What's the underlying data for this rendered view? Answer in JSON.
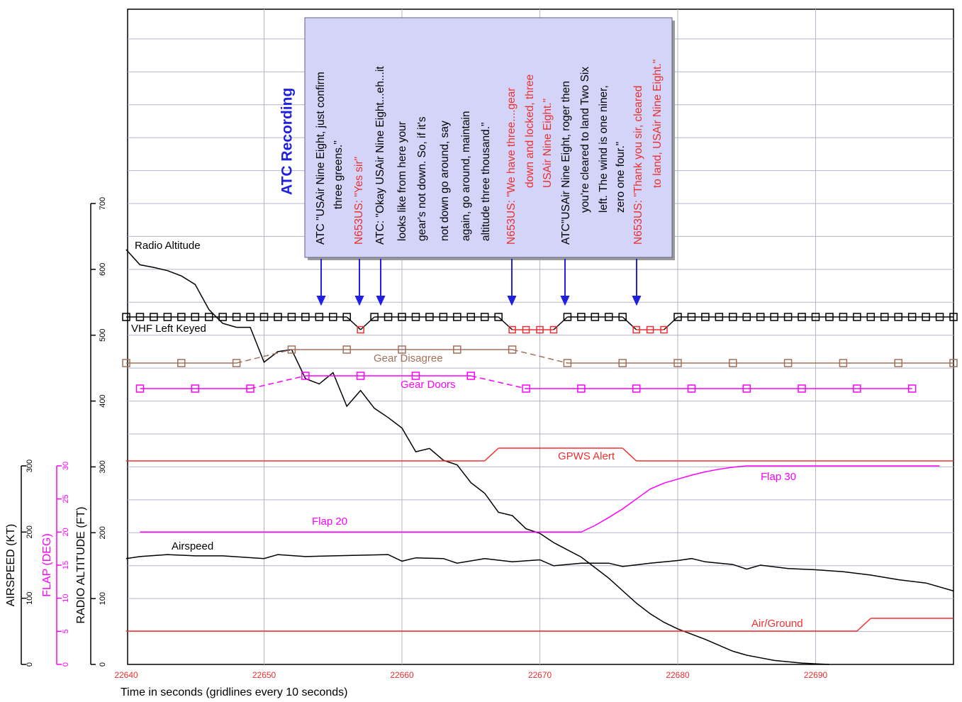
{
  "chart_data": {
    "type": "line",
    "xlabel": "Time in seconds (gridlines every 10 seconds)",
    "xlim": [
      22640,
      22700
    ],
    "xticks": [
      22640,
      22650,
      22660,
      22670,
      22680,
      22690
    ],
    "y_axes": [
      {
        "label": "RADIO ALTITUDE (FT)",
        "lim": [
          0,
          700
        ],
        "ticks": [
          0,
          100,
          200,
          300,
          400,
          500,
          600,
          700
        ],
        "color": "#000000"
      },
      {
        "label": "FLAP (DEG)",
        "lim": [
          0,
          30
        ],
        "ticks": [
          0,
          5,
          10,
          15,
          20,
          25,
          30
        ],
        "color": "#ff00ff"
      },
      {
        "label": "AIRSPEED (KT)",
        "lim": [
          0,
          300
        ],
        "ticks": [
          0,
          100,
          200,
          300
        ],
        "color": "#000000"
      }
    ],
    "ygrid": [
      50,
      100,
      150,
      200,
      250,
      300,
      350,
      400,
      450,
      500,
      550,
      600,
      650,
      700,
      750,
      800,
      850,
      900,
      950
    ],
    "grid": true,
    "series": [
      {
        "name": "Radio Altitude",
        "color": "#000000",
        "axis": 0,
        "x": [
          22640,
          22641,
          22642,
          22643,
          22644,
          22645,
          22646,
          22647,
          22648,
          22649,
          22650,
          22651,
          22652,
          22653,
          22654,
          22655,
          22656,
          22657,
          22658,
          22659,
          22660,
          22661,
          22662,
          22663,
          22664,
          22665,
          22666,
          22667,
          22668,
          22669,
          22670,
          22671,
          22672,
          22673,
          22674,
          22675,
          22676,
          22677,
          22678,
          22679,
          22680,
          22681,
          22682,
          22683,
          22684,
          22685,
          22686,
          22687,
          22688,
          22689,
          22690,
          22691
        ],
        "values": [
          630,
          607,
          603,
          598,
          590,
          577,
          539,
          518,
          512,
          512,
          459,
          475,
          478,
          434,
          426,
          443,
          392,
          416,
          389,
          375,
          359,
          323,
          328,
          310,
          303,
          276,
          260,
          231,
          226,
          206,
          199,
          185,
          174,
          163,
          147,
          131,
          112,
          93,
          77,
          64,
          54,
          46,
          38,
          29,
          20,
          14,
          10,
          6,
          4,
          2,
          1,
          0
        ]
      },
      {
        "name": "Airspeed",
        "color": "#000000",
        "axis": 2,
        "x": [
          22640,
          22641,
          22643,
          22645,
          22647,
          22650,
          22651,
          22653,
          22655,
          22657,
          22659,
          22660,
          22661,
          22663,
          22664,
          22666,
          22668,
          22670,
          22671,
          22673,
          22675,
          22676,
          22678,
          22680,
          22681,
          22682,
          22684,
          22685,
          22686,
          22688,
          22690,
          22692,
          22694,
          22696,
          22698,
          22700
        ],
        "values": [
          160,
          163,
          166,
          164,
          164,
          160,
          166,
          163,
          164,
          165,
          166,
          156,
          161,
          160,
          153,
          160,
          155,
          158,
          149,
          153,
          153,
          148,
          153,
          157,
          160,
          155,
          151,
          144,
          150,
          145,
          143,
          140,
          135,
          128,
          123,
          111
        ]
      },
      {
        "color": "#ff00ff",
        "axis": 1,
        "x": [
          22641,
          22673,
          22674,
          22675,
          22676,
          22677,
          22678,
          22679,
          22680,
          22681,
          22682,
          22683,
          22684,
          22685,
          22699
        ],
        "values": [
          20,
          20,
          21,
          22.2,
          23.5,
          25,
          26.5,
          27.4,
          28,
          28.6,
          29.1,
          29.5,
          29.8,
          30,
          30
        ]
      },
      {
        "name": "VHF Left Keyed",
        "color": "#000000",
        "active_color": "#e83030",
        "markers": true,
        "x": [
          22640,
          22641,
          22642,
          22643,
          22644,
          22645,
          22646,
          22647,
          22648,
          22649,
          22650,
          22651,
          22652,
          22653,
          22654,
          22655,
          22656,
          22657,
          22658,
          22659,
          22660,
          22661,
          22662,
          22663,
          22664,
          22665,
          22666,
          22667,
          22668,
          22669,
          22670,
          22671,
          22672,
          22673,
          22674,
          22675,
          22676,
          22677,
          22678,
          22679,
          22680,
          22681,
          22682,
          22683,
          22684,
          22685,
          22686,
          22687,
          22688,
          22689,
          22690,
          22691,
          22692,
          22693,
          22694,
          22695,
          22696,
          22697,
          22698,
          22699,
          22700
        ],
        "values": [
          0,
          0,
          0,
          0,
          0,
          0,
          0,
          0,
          0,
          0,
          0,
          0,
          0,
          0,
          0,
          0,
          0,
          1,
          0,
          0,
          0,
          0,
          0,
          0,
          0,
          0,
          0,
          0,
          1,
          1,
          1,
          1,
          0,
          0,
          0,
          0,
          0,
          1,
          1,
          1,
          0,
          0,
          0,
          0,
          0,
          0,
          0,
          0,
          0,
          0,
          0,
          0,
          0,
          0,
          0,
          0,
          0,
          0,
          0,
          0,
          0
        ]
      },
      {
        "name": "Gear Disagree",
        "color": "#a0705a",
        "markers": true,
        "dashed_transitions": true,
        "x": [
          22640,
          22644,
          22648,
          22652,
          22656,
          22660,
          22664,
          22668,
          22672,
          22676,
          22680,
          22684,
          22688,
          22692,
          22696,
          22700
        ],
        "values": [
          0,
          0,
          0,
          1,
          1,
          1,
          1,
          1,
          0,
          0,
          0,
          0,
          0,
          0,
          0,
          0
        ]
      },
      {
        "name": "Gear Doors",
        "color": "#ff00ff",
        "markers": true,
        "dashed_transitions": true,
        "x": [
          22641,
          22645,
          22649,
          22653,
          22657,
          22661,
          22665,
          22669,
          22673,
          22677,
          22681,
          22685,
          22689,
          22693,
          22697
        ],
        "values": [
          0,
          0,
          0,
          1,
          1,
          1,
          1,
          0,
          0,
          0,
          0,
          0,
          0,
          0,
          0
        ]
      },
      {
        "name": "GPWS Alert",
        "color": "#f03030",
        "x": [
          22640,
          22666,
          22667,
          22676,
          22677,
          22700
        ],
        "values": [
          0,
          0,
          1,
          1,
          0,
          0
        ]
      },
      {
        "name": "Air/Ground",
        "color": "#f03030",
        "x": [
          22640,
          22693,
          22694,
          22700
        ],
        "values": [
          0,
          0,
          1,
          1
        ]
      }
    ],
    "annotations": [
      {
        "text": "Flap 20",
        "color": "#ff00ff"
      },
      {
        "text": "Flap 30",
        "color": "#ff00ff"
      }
    ],
    "atc_box": {
      "title": "ATC Recording",
      "transmissions": [
        {
          "color": "#000000",
          "lines": [
            "ATC \"USAir Nine Eight, just confirm",
            "three greens.\""
          ]
        },
        {
          "color": "#e83030",
          "lines": [
            "N653US: \"Yes sir\""
          ]
        },
        {
          "color": "#000000",
          "lines": [
            "ATC: \"Okay USAir Nine Eight...eh...it",
            "looks like from here your",
            "gear's not down. So, if it's",
            "not down go around, say",
            "again, go around, maintain",
            "altitude three thousand.\""
          ]
        },
        {
          "color": "#e83030",
          "lines": [
            "N653US: \"We have three....gear",
            "down and locked, three",
            "USAir Nine Eight.\""
          ]
        },
        {
          "color": "#000000",
          "lines": [
            "ATC\"USAir Nine Eight, roger then",
            "you're cleared to land Two Six",
            "left. The wind is one niner,",
            "zero one four.\""
          ]
        },
        {
          "color": "#e83030",
          "lines": [
            "N653US: \"Thank you sir, cleared",
            "to land, USAir Nine Eight.\""
          ]
        }
      ]
    }
  }
}
